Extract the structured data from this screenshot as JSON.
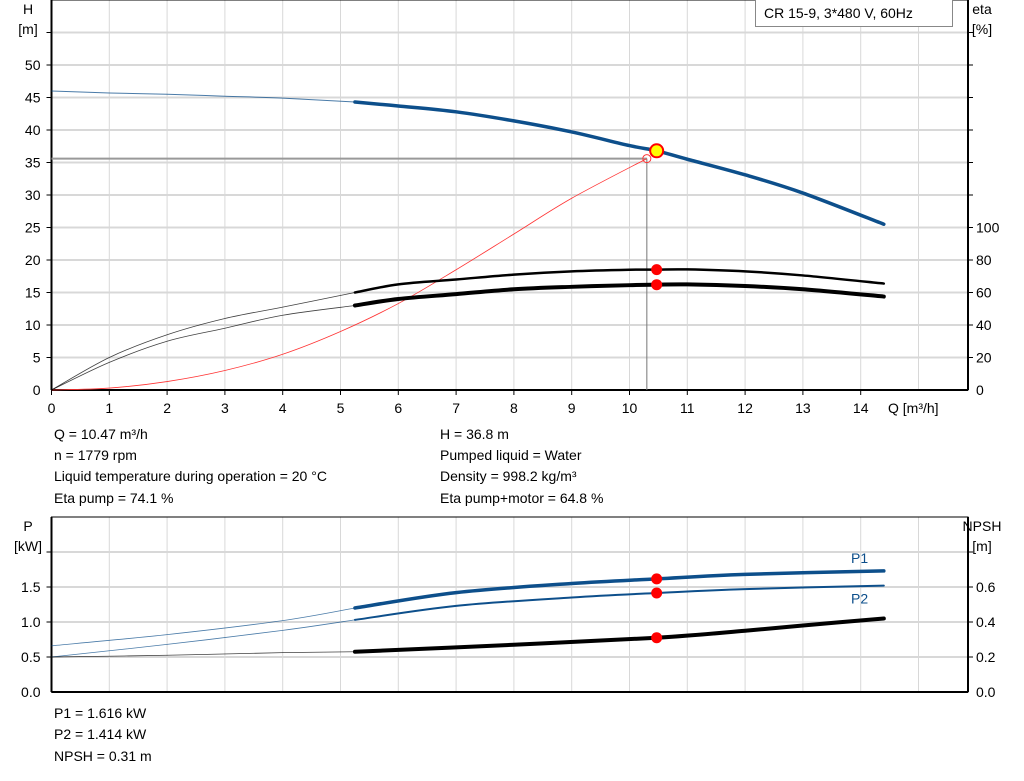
{
  "legend_title": "CR 15-9, 3*480 V, 60Hz",
  "colors": {
    "head": "#0d4f8b",
    "eta": "#000000",
    "system": "#ff3333",
    "point": "#ff0000",
    "duty_marker_fill": "#ffff00",
    "power": "#0d4f8b",
    "npsh": "#000000",
    "grid": "#d8d8d8"
  },
  "chart_data": [
    {
      "type": "line",
      "title": "",
      "xlabel": "Q [m³/h]",
      "ylabel": "H\n[m]",
      "y2label": "eta\n[%]",
      "xlim": [
        0,
        15.87
      ],
      "ylim": [
        0,
        55
      ],
      "y2lim": [
        0,
        100
      ],
      "x_ticks": [
        "0",
        "1",
        "2",
        "3",
        "4",
        "5",
        "6",
        "7",
        "8",
        "9",
        "10",
        "11",
        "12",
        "13",
        "14"
      ],
      "y_ticks": [
        "0",
        "5",
        "10",
        "15",
        "20",
        "25",
        "30",
        "35",
        "40",
        "45",
        "50"
      ],
      "y2_ticks": [
        "0",
        "20",
        "40",
        "60",
        "80",
        "100"
      ],
      "grid": true,
      "series": [
        {
          "id": "head",
          "axis": "left",
          "x": [
            0,
            1,
            2,
            3,
            4,
            5.25,
            6,
            7,
            8,
            9,
            10,
            10.47,
            11,
            12,
            13,
            14.4
          ],
          "y": [
            46,
            45.7,
            45.5,
            45.2,
            44.9,
            44.3,
            43.7,
            42.8,
            41.4,
            39.7,
            37.6,
            36.8,
            35.5,
            33.1,
            30.3,
            25.5
          ],
          "thick_from": 5.25
        },
        {
          "id": "system",
          "axis": "left",
          "x": [
            0,
            1,
            2,
            3,
            4,
            5,
            6,
            7,
            8,
            9,
            10.3
          ],
          "y": [
            0,
            0.3,
            1.3,
            3,
            5.5,
            9,
            13.3,
            18.5,
            24,
            29.5,
            35.6
          ]
        },
        {
          "id": "eta-pump",
          "axis": "right",
          "x": [
            0,
            1,
            2,
            3,
            4,
            5.25,
            6,
            7,
            8,
            9,
            10,
            10.47,
            11,
            12,
            13,
            14.4
          ],
          "y": [
            0,
            20,
            34,
            44,
            51,
            60,
            65,
            68,
            71,
            73,
            74,
            74.1,
            74.2,
            73,
            70.5,
            65.5
          ],
          "thick_from": 5.25
        },
        {
          "id": "eta-pump-motor",
          "axis": "right",
          "x": [
            0,
            1,
            2,
            3,
            4,
            5.25,
            6,
            7,
            8,
            9,
            10,
            10.47,
            11,
            12,
            13,
            14.4
          ],
          "y": [
            0,
            17,
            30,
            38,
            46,
            52,
            56,
            59,
            62,
            63.5,
            64.5,
            64.8,
            65,
            64,
            62,
            57.5
          ],
          "thick_from": 5.25
        }
      ],
      "duty_point": {
        "Q": 10.47,
        "H": 36.8,
        "eta_pump": 74.1,
        "eta_pump_motor": 64.8
      },
      "system_point": {
        "Q": 10.3,
        "H": 35.6
      }
    },
    {
      "type": "line",
      "title": "",
      "ylabel": "P\n[kW]",
      "y2label": "NPSH\n[m]",
      "xlim": [
        0,
        15.87
      ],
      "ylim": [
        0,
        2.5
      ],
      "y2lim": [
        0,
        1.0
      ],
      "y_ticks": [
        "0.0",
        "0.5",
        "1.0",
        "1.5"
      ],
      "y2_ticks": [
        "0.0",
        "0.2",
        "0.4",
        "0.6"
      ],
      "grid": true,
      "series": [
        {
          "id": "P1",
          "name": "P1",
          "axis": "left",
          "x": [
            0,
            2,
            4,
            5.25,
            7,
            9,
            10.47,
            12,
            14.4
          ],
          "y": [
            0.66,
            0.82,
            1.02,
            1.2,
            1.42,
            1.55,
            1.616,
            1.68,
            1.73
          ],
          "thick_from": 5.25
        },
        {
          "id": "P2",
          "name": "P2",
          "axis": "left",
          "x": [
            0,
            2,
            4,
            5.25,
            7,
            9,
            10.47,
            12,
            14.4
          ],
          "y": [
            0.5,
            0.68,
            0.88,
            1.03,
            1.23,
            1.35,
            1.414,
            1.47,
            1.52
          ],
          "thick_from": 5.25
        },
        {
          "id": "NPSH",
          "axis": "right",
          "x": [
            0,
            2,
            4,
            5.25,
            8,
            10.47,
            12,
            13,
            14.4
          ],
          "y": [
            0.2,
            0.21,
            0.225,
            0.23,
            0.27,
            0.31,
            0.35,
            0.38,
            0.42
          ],
          "thick_from": 5.25
        }
      ],
      "duty_point": {
        "Q": 10.47,
        "P1": 1.616,
        "P2": 1.414,
        "NPSH": 0.31
      }
    }
  ],
  "info_top": {
    "left": [
      "Q = 10.47 m³/h",
      "n = 1779 rpm",
      "Liquid temperature during operation = 20 °C",
      "Eta pump = 74.1 %"
    ],
    "right": [
      "H = 36.8 m",
      "Pumped liquid = Water",
      "Density = 998.2 kg/m³",
      "Eta pump+motor = 64.8 %"
    ]
  },
  "info_bottom": [
    "P1 = 1.616 kW",
    "P2 = 1.414 kW",
    "NPSH = 0.31 m"
  ]
}
